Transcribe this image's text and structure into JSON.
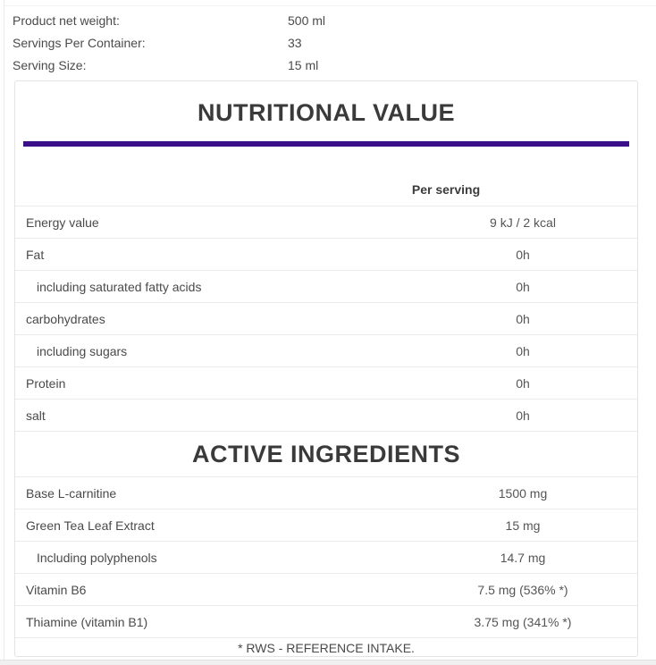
{
  "info": {
    "rows": [
      {
        "label": "Product net weight:",
        "value": "500 ml"
      },
      {
        "label": "Servings Per Container:",
        "value": "33"
      },
      {
        "label": "Serving Size:",
        "value": "15 ml"
      }
    ]
  },
  "nutrition_box": {
    "title": "NUTRITIONAL VALUE",
    "column_header": "Per serving",
    "rows": [
      {
        "label": "Energy value",
        "value": "9 kJ / 2 kcal"
      },
      {
        "label": "Fat",
        "value": "0h"
      },
      {
        "label": "including saturated fatty acids",
        "value": "0h"
      },
      {
        "label": "carbohydrates",
        "value": "0h"
      },
      {
        "label": "including sugars",
        "value": "0h"
      },
      {
        "label": "Protein",
        "value": "0h"
      },
      {
        "label": "salt",
        "value": "0h"
      }
    ],
    "active_ingredients_title": "ACTIVE INGREDIENTS",
    "ingredient_rows": [
      {
        "label": "Base L-carnitine",
        "value": "1500 mg"
      },
      {
        "label": "Green Tea Leaf Extract",
        "value": "15 mg"
      },
      {
        "label": "Including polyphenols",
        "value": "14.7 mg"
      },
      {
        "label": "Vitamin B6",
        "value": "7.5 mg (536% *)"
      },
      {
        "label": "Thiamine (vitamin B1)",
        "value": "3.75 mg (341% *)"
      }
    ],
    "footnote": "* RWS - REFERENCE INTAKE."
  },
  "colors": {
    "accent_bar": "#3b0f8a",
    "heading_text": "#3a3a3a",
    "body_text": "#4a4a4a",
    "row_border": "#ebebeb"
  }
}
